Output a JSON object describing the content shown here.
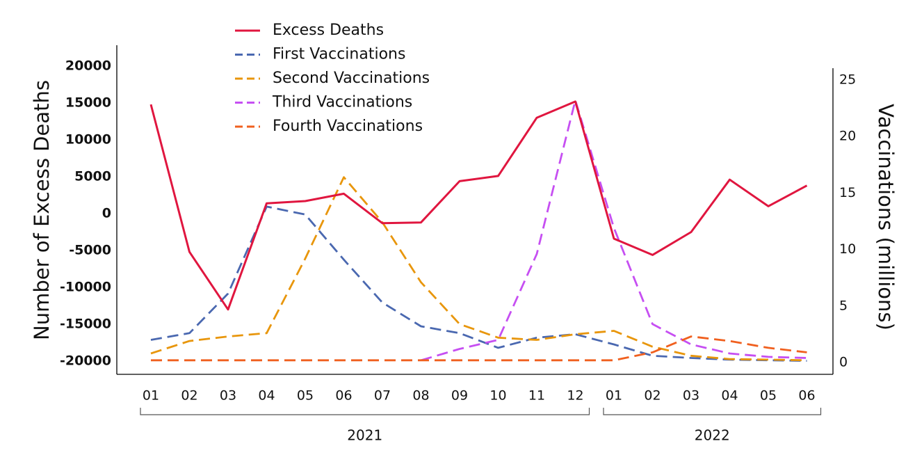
{
  "chart_data": {
    "type": "line",
    "x_ticks": [
      "01",
      "02",
      "03",
      "04",
      "05",
      "06",
      "07",
      "08",
      "09",
      "10",
      "11",
      "12",
      "01",
      "02",
      "03",
      "04",
      "05",
      "06"
    ],
    "year_groups": [
      {
        "label": "2021",
        "start": 0,
        "end": 11
      },
      {
        "label": "2022",
        "start": 12,
        "end": 17
      }
    ],
    "left_axis": {
      "label": "Number of Excess Deaths",
      "ticks": [
        20000,
        15000,
        10000,
        5000,
        0,
        -5000,
        -10000,
        -15000,
        -20000
      ],
      "range": [
        -20000,
        20000
      ]
    },
    "right_axis": {
      "label": "Vaccinations (millions)",
      "ticks": [
        25,
        20,
        15,
        10,
        5,
        0
      ],
      "range": [
        0,
        25
      ]
    },
    "legend_position": "top-left",
    "series": [
      {
        "name": "Excess Deaths",
        "axis": "left",
        "color": "#e0163f",
        "dash": "solid",
        "values": [
          14800,
          -5200,
          -13000,
          1400,
          1700,
          2700,
          -1300,
          -1200,
          4400,
          5100,
          13000,
          15200,
          -3400,
          -5600,
          -2500,
          4600,
          1000,
          3800
        ]
      },
      {
        "name": "First Vaccinations",
        "axis": "right",
        "color": "#4a68b0",
        "dash": "dashed",
        "values": [
          2.0,
          2.6,
          6.1,
          13.8,
          13.1,
          9.1,
          5.3,
          3.2,
          2.6,
          1.3,
          2.2,
          2.5,
          1.6,
          0.6,
          0.4,
          0.25,
          0.2,
          0.15
        ]
      },
      {
        "name": "Second Vaccinations",
        "axis": "right",
        "color": "#e8960c",
        "dash": "dashed",
        "values": [
          0.8,
          1.9,
          2.3,
          2.6,
          9.2,
          16.4,
          12.4,
          7.1,
          3.4,
          2.2,
          2.0,
          2.5,
          2.8,
          1.4,
          0.6,
          0.3,
          0.25,
          0.2
        ]
      },
      {
        "name": "Third Vaccinations",
        "axis": "right",
        "color": "#c64ff2",
        "dash": "dashed",
        "values": [
          null,
          null,
          null,
          null,
          null,
          null,
          null,
          0.2,
          1.2,
          2.0,
          9.6,
          23.2,
          11.9,
          3.4,
          1.6,
          0.8,
          0.5,
          0.4
        ]
      },
      {
        "name": "Fourth Vaccinations",
        "axis": "right",
        "color": "#f0601f",
        "dash": "dashed",
        "values": [
          0.2,
          0.2,
          0.2,
          0.2,
          0.2,
          0.2,
          0.2,
          0.2,
          0.2,
          0.2,
          0.2,
          0.2,
          0.2,
          0.9,
          2.3,
          1.9,
          1.3,
          0.9
        ]
      }
    ]
  }
}
